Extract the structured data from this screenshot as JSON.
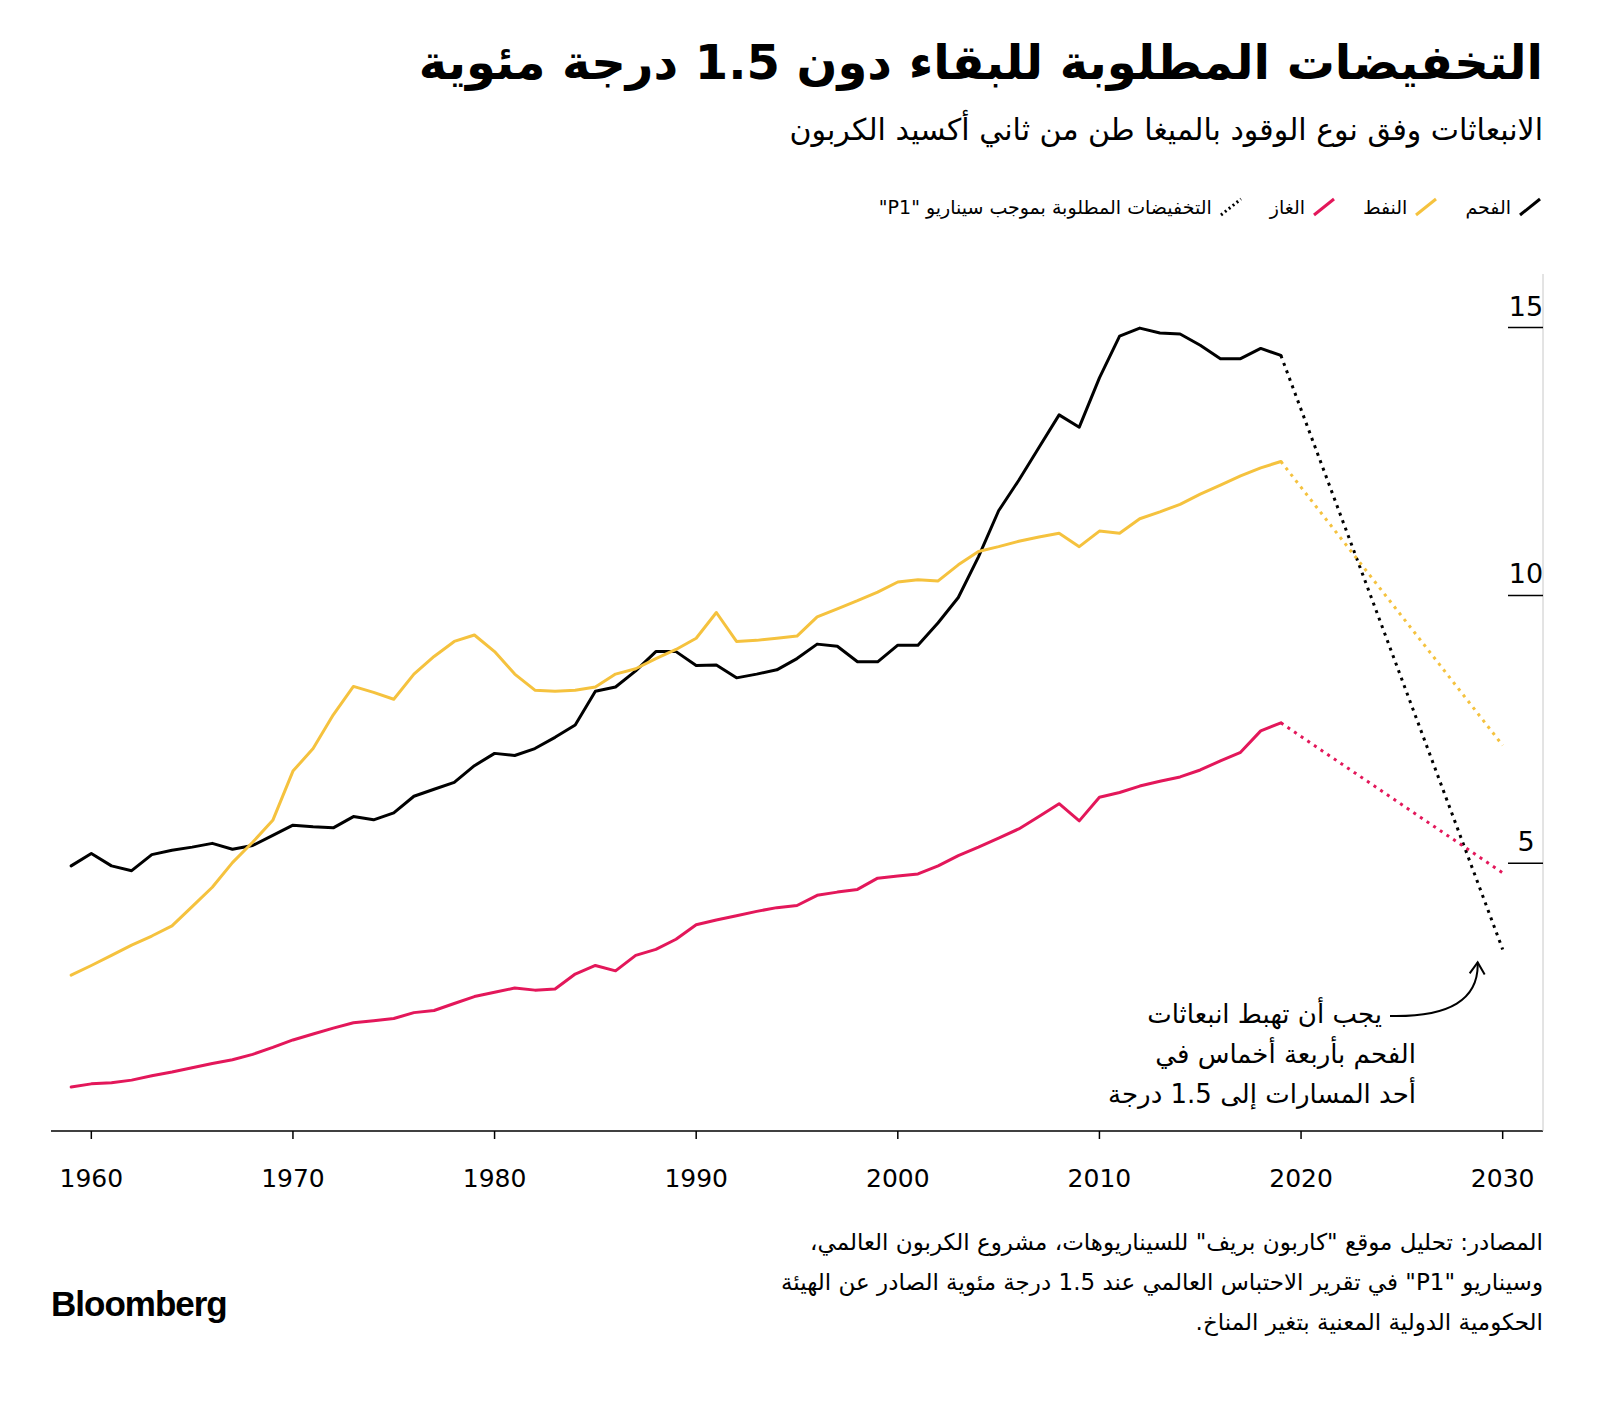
{
  "chart_data": {
    "type": "line",
    "title": "التخفيضات المطلوبة للبقاء دون 1.5 درجة مئوية",
    "subtitle": "الانبعاثات وفق نوع الوقود بالميغا طن من ثاني أكسيد الكربون",
    "x": [
      1959,
      1960,
      1961,
      1962,
      1963,
      1964,
      1965,
      1966,
      1967,
      1968,
      1969,
      1970,
      1971,
      1972,
      1973,
      1974,
      1975,
      1976,
      1977,
      1978,
      1979,
      1980,
      1981,
      1982,
      1983,
      1984,
      1985,
      1986,
      1987,
      1988,
      1989,
      1990,
      1991,
      1992,
      1993,
      1994,
      1995,
      1996,
      1997,
      1998,
      1999,
      2000,
      2001,
      2002,
      2003,
      2004,
      2005,
      2006,
      2007,
      2008,
      2009,
      2010,
      2011,
      2012,
      2013,
      2014,
      2015,
      2016,
      2017,
      2018,
      2019
    ],
    "series": [
      {
        "name": "الفحم",
        "color": "#000000",
        "line_style": "solid",
        "values": [
          4.95,
          5.18,
          4.95,
          4.86,
          5.16,
          5.24,
          5.3,
          5.37,
          5.26,
          5.33,
          5.52,
          5.71,
          5.68,
          5.66,
          5.87,
          5.81,
          5.94,
          6.25,
          6.38,
          6.51,
          6.82,
          7.05,
          7.01,
          7.14,
          7.35,
          7.58,
          8.21,
          8.29,
          8.59,
          8.95,
          8.95,
          8.69,
          8.7,
          8.46,
          8.53,
          8.61,
          8.82,
          9.09,
          9.05,
          8.76,
          8.76,
          9.07,
          9.07,
          9.49,
          9.96,
          10.72,
          11.58,
          12.15,
          12.76,
          13.37,
          13.14,
          14.06,
          14.84,
          14.99,
          14.9,
          14.88,
          14.67,
          14.42,
          14.42,
          14.61,
          14.48
        ],
        "projection_values": [
          14.48,
          3.39
        ]
      },
      {
        "name": "النفط",
        "color": "#f5c23e",
        "line_style": "solid",
        "values": [
          2.91,
          3.09,
          3.28,
          3.47,
          3.64,
          3.83,
          4.19,
          4.55,
          5.01,
          5.39,
          5.8,
          6.72,
          7.14,
          7.77,
          8.3,
          8.19,
          8.06,
          8.53,
          8.86,
          9.14,
          9.26,
          8.95,
          8.53,
          8.23,
          8.21,
          8.23,
          8.29,
          8.53,
          8.63,
          8.82,
          8.99,
          9.2,
          9.68,
          9.14,
          9.16,
          9.2,
          9.24,
          9.6,
          9.75,
          9.9,
          10.06,
          10.25,
          10.29,
          10.27,
          10.57,
          10.82,
          10.91,
          11.01,
          11.09,
          11.16,
          10.91,
          11.2,
          11.16,
          11.43,
          11.56,
          11.7,
          11.89,
          12.06,
          12.23,
          12.38,
          12.5
        ],
        "projection_values": [
          12.5,
          7.2
        ]
      },
      {
        "name": "الغاز",
        "color": "#e3175a",
        "line_style": "solid",
        "values": [
          0.82,
          0.88,
          0.9,
          0.95,
          1.03,
          1.1,
          1.18,
          1.26,
          1.33,
          1.43,
          1.56,
          1.7,
          1.81,
          1.92,
          2.02,
          2.06,
          2.1,
          2.21,
          2.25,
          2.38,
          2.51,
          2.59,
          2.67,
          2.63,
          2.65,
          2.93,
          3.09,
          2.99,
          3.28,
          3.39,
          3.58,
          3.85,
          3.94,
          4.02,
          4.1,
          4.17,
          4.21,
          4.4,
          4.46,
          4.51,
          4.72,
          4.76,
          4.8,
          4.95,
          5.14,
          5.3,
          5.47,
          5.64,
          5.87,
          6.11,
          5.79,
          6.23,
          6.32,
          6.44,
          6.53,
          6.61,
          6.74,
          6.91,
          7.07,
          7.47,
          7.62
        ],
        "projection_values": [
          7.62,
          4.82
        ]
      }
    ],
    "projection": {
      "name": "التخفيضات المطلوبة بموجب سيناريو \"P1\"",
      "color": "#000000",
      "line_style": "dotted",
      "x": [
        2019,
        2030
      ]
    },
    "xlim": [
      1958,
      2032
    ],
    "xticks": [
      1960,
      1970,
      1980,
      1990,
      2000,
      2010,
      2020,
      2030
    ],
    "ylim": [
      0,
      16
    ],
    "yticks": [
      5,
      10,
      15
    ],
    "grid": false,
    "legend": "top-right",
    "annotation": [
      "يجب أن تهبط انبعاثات",
      "الفحم بأربعة أخماس في",
      "أحد المسارات إلى 1.5 درجة"
    ],
    "source": [
      "المصادر: تحليل موقع \"كاربون بريف\" للسيناريوهات، مشروع الكربون العالمي،",
      "وسيناريو \"P1\" في تقرير الاحتباس العالمي عند 1.5 درجة مئوية الصادر عن الهيئة",
      "الحكومية الدولية المعنية بتغير المناخ."
    ],
    "logo": "Bloomberg"
  }
}
